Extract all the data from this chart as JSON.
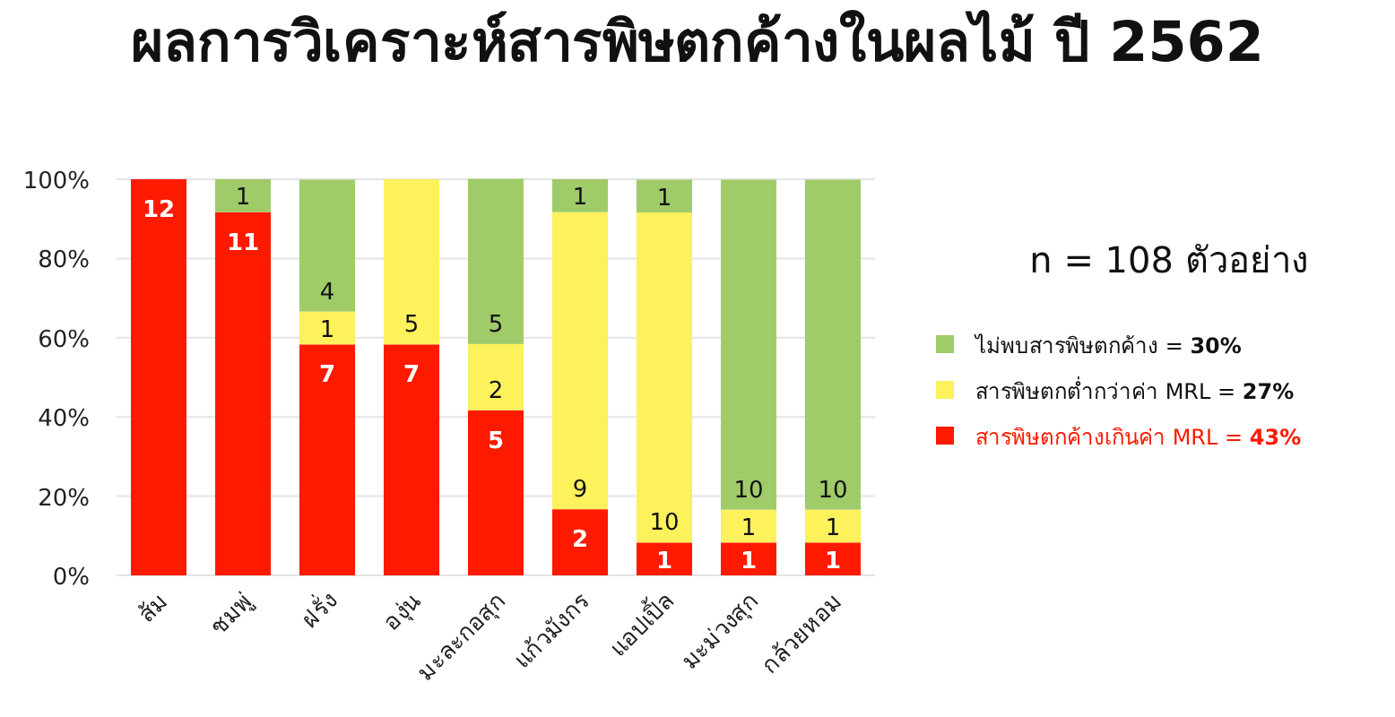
{
  "chart_data": {
    "type": "bar",
    "title": "ผลการวิเคราะห์สารพิษตกค้างในผลไม้ ปี 2562",
    "categories": [
      "ส้ม",
      "ชมพู่",
      "ฝรั่ง",
      "องุ่น",
      "มะละกอสุก",
      "แก้วมังกร",
      "แอปเปิ้ล",
      "มะม่วงสุก",
      "กล้วยหอม"
    ],
    "stacked": true,
    "series": [
      {
        "name": "สารพิษตกค้างเกินค่า MRL = 43%",
        "color": "#fe1a00",
        "values": [
          100,
          91.7,
          58.3,
          58.3,
          41.7,
          16.7,
          8.3,
          8.3,
          8.3
        ]
      },
      {
        "name": "สารพิษตกต่ำกว่าค่า MRL = 27%",
        "color": "#fdf15c",
        "values": [
          null,
          null,
          8.3,
          41.7,
          16.7,
          75,
          83.3,
          8.3,
          8.3
        ]
      },
      {
        "name": "ไม่พบสารพิษตกค้าง = 30%",
        "color": "#9fcb69",
        "values": [
          null,
          8.3,
          33.3,
          null,
          41.7,
          8.3,
          8.3,
          83.3,
          83.3
        ]
      }
    ],
    "ylim": [
      0,
      100
    ],
    "yticks": [
      {
        "value": 0,
        "label": "0%"
      },
      {
        "value": 20,
        "label": "20%"
      },
      {
        "value": 40,
        "label": "40%"
      },
      {
        "value": 60,
        "label": "60%"
      },
      {
        "value": 80,
        "label": "80%"
      },
      {
        "value": 100,
        "label": "100%"
      }
    ],
    "grid": "y",
    "legend": "right",
    "annotations": [
      "n = 108 ตัวอย่าง",
      {
        "text": "12",
        "x": "ส้ม",
        "y": 100
      },
      {
        "text": "11",
        "x": "ชมพู่",
        "y": 91.7
      },
      {
        "text": "7",
        "x": "ฝรั่ง",
        "y": 58.3
      },
      {
        "text": "7",
        "x": "องุ่น",
        "y": 58.3
      },
      {
        "text": "5",
        "x": "มะละกอสุก",
        "y": 41.7
      },
      {
        "text": "2",
        "x": "แก้วมังกร",
        "y": 16.7
      },
      {
        "text": "1",
        "x": "แอปเปิ้ล",
        "y": 8.3
      },
      {
        "text": "1",
        "x": "มะม่วงสุก",
        "y": 8.3
      },
      {
        "text": "1",
        "x": "กล้วยหอม",
        "y": 8.3
      },
      {
        "text": "1",
        "x": "ฝรั่ง",
        "y": 66.6
      },
      {
        "text": "5",
        "x": "องุ่น",
        "y": 58.3
      },
      {
        "text": "2",
        "x": "มะละกอสุก",
        "y": 41.7
      },
      {
        "text": "9",
        "x": "แก้วมังกร",
        "y": 16.7
      },
      {
        "text": "10",
        "x": "แอปเปิ้ล",
        "y": 8.3
      },
      {
        "text": "1",
        "x": "มะม่วงสุก",
        "y": 16.6
      },
      {
        "text": "1",
        "x": "กล้วยหอม",
        "y": 16.6
      },
      {
        "text": "1",
        "x": "ชมพู่",
        "y": 100
      },
      {
        "text": "4",
        "x": "ฝรั่ง",
        "y": 66.6
      },
      {
        "text": "5",
        "x": "มะละกอสุก",
        "y": 58.4
      },
      {
        "text": "1",
        "x": "แก้วมังกร",
        "y": 100
      },
      {
        "text": "1",
        "x": "แอปเปิ้ล",
        "y": 99.9
      },
      {
        "text": "10",
        "x": "มะม่วงสุก",
        "y": 16.6
      },
      {
        "text": "10",
        "x": "กล้วยหอม",
        "y": 16.6
      }
    ]
  }
}
